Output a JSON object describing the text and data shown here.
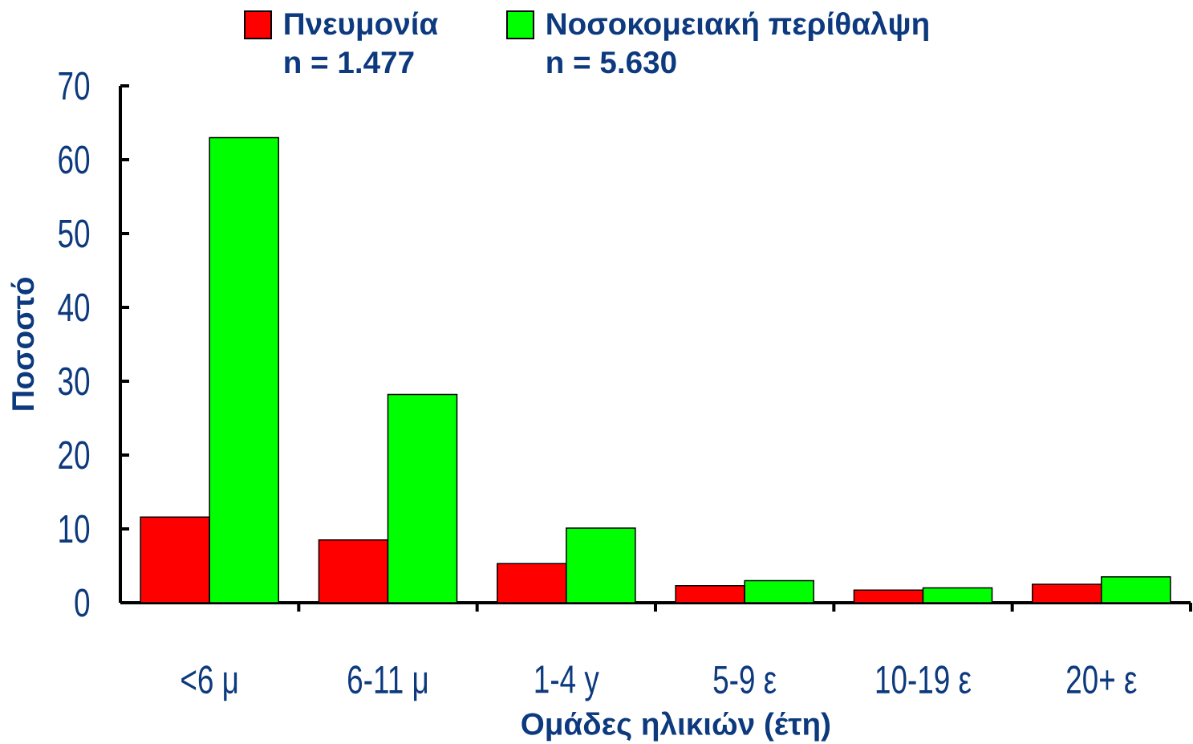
{
  "chart_data": {
    "type": "bar",
    "categories": [
      "<6 μ",
      "6-11 μ",
      "1-4 y",
      "5-9 ε",
      "10-19 ε",
      "20+ ε"
    ],
    "series": [
      {
        "name": "Πνευμονία",
        "color": "#ff0000",
        "values": [
          11.6,
          8.5,
          5.3,
          2.3,
          1.7,
          2.5
        ]
      },
      {
        "name": "Νοσοκομειακή περίθαλψη",
        "color": "#00ff00",
        "values": [
          63.0,
          28.2,
          10.1,
          3.0,
          2.0,
          3.5
        ]
      }
    ],
    "xlabel": "Ομάδες ηλικιών (έτη)",
    "ylabel": "Ποσοστό",
    "ylim": [
      0,
      70
    ],
    "yticks": [
      0,
      10,
      20,
      30,
      40,
      50,
      60,
      70
    ],
    "legend": "top",
    "annotations": [
      "n = 1.477",
      "n = 5.630"
    ]
  }
}
